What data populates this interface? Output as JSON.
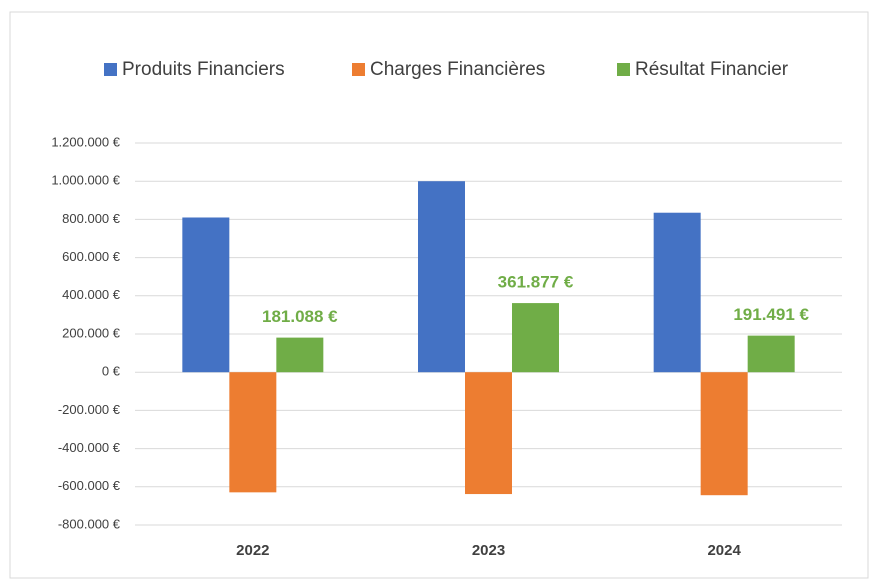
{
  "chart_data": {
    "type": "bar",
    "categories": [
      "2022",
      "2023",
      "2024"
    ],
    "series": [
      {
        "name": "Produits Financiers",
        "color": "#4472c4",
        "values": [
          810000,
          1000000,
          835000
        ]
      },
      {
        "name": "Charges Financières",
        "color": "#ed7d31",
        "values": [
          -629000,
          -638000,
          -644000
        ]
      },
      {
        "name": "Résultat Financier",
        "color": "#70ad47",
        "values": [
          181088,
          361877,
          191491
        ],
        "value_labels": [
          "181.088 €",
          "361.877 €",
          "191.491 €"
        ]
      }
    ],
    "ylim": [
      -800000,
      1200000
    ],
    "yticks": [
      {
        "value": -800000,
        "label": "-800.000 €"
      },
      {
        "value": -600000,
        "label": "-600.000 €"
      },
      {
        "value": -400000,
        "label": "-400.000 €"
      },
      {
        "value": -200000,
        "label": "-200.000 €"
      },
      {
        "value": 0,
        "label": "0 €"
      },
      {
        "value": 200000,
        "label": "200.000 €"
      },
      {
        "value": 400000,
        "label": "400.000 €"
      },
      {
        "value": 600000,
        "label": "600.000 €"
      },
      {
        "value": 800000,
        "label": "800.000 €"
      },
      {
        "value": 1000000,
        "label": "1.000.000 €"
      },
      {
        "value": 1200000,
        "label": "1.200.000 €"
      }
    ],
    "grid": true,
    "legend": "top"
  }
}
